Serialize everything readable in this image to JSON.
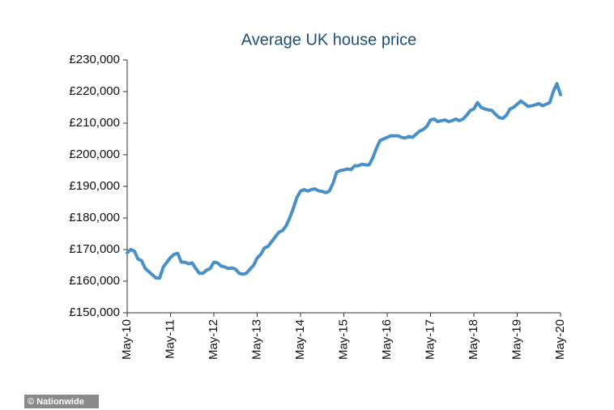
{
  "chart_data": {
    "type": "line",
    "title": "Average UK house price",
    "source": "© Nationwide",
    "categories": [
      "May-10",
      null,
      null,
      null,
      null,
      null,
      null,
      null,
      null,
      null,
      null,
      null,
      "May-11",
      null,
      null,
      null,
      null,
      null,
      null,
      null,
      null,
      null,
      null,
      null,
      "May-12",
      null,
      null,
      null,
      null,
      null,
      null,
      null,
      null,
      null,
      null,
      null,
      "May-13",
      null,
      null,
      null,
      null,
      null,
      null,
      null,
      null,
      null,
      null,
      null,
      "May-14",
      null,
      null,
      null,
      null,
      null,
      null,
      null,
      null,
      null,
      null,
      null,
      "May-15",
      null,
      null,
      null,
      null,
      null,
      null,
      null,
      null,
      null,
      null,
      null,
      "May-16",
      null,
      null,
      null,
      null,
      null,
      null,
      null,
      null,
      null,
      null,
      null,
      "May-17",
      null,
      null,
      null,
      null,
      null,
      null,
      null,
      null,
      null,
      null,
      null,
      "May-18",
      null,
      null,
      null,
      null,
      null,
      null,
      null,
      null,
      null,
      null,
      null,
      "May-19",
      null,
      null,
      null,
      null,
      null,
      null,
      null,
      null,
      null,
      null,
      null,
      "May-20"
    ],
    "series": [
      {
        "name": "Average UK house price",
        "color": "#4a90c8",
        "values": [
          169000,
          170000,
          169500,
          167000,
          166500,
          164000,
          163000,
          162000,
          161000,
          161000,
          164500,
          166000,
          167500,
          168500,
          168800,
          166000,
          166000,
          165500,
          165800,
          164000,
          162500,
          162500,
          163500,
          164000,
          166000,
          165800,
          164800,
          164500,
          164000,
          164200,
          163800,
          162500,
          162200,
          162500,
          163800,
          165000,
          167300,
          168500,
          170500,
          171000,
          172500,
          174000,
          175500,
          176000,
          177500,
          180000,
          183000,
          186500,
          188500,
          189000,
          188500,
          189000,
          189200,
          188600,
          188400,
          188000,
          188500,
          191000,
          194500,
          195000,
          195200,
          195500,
          195300,
          196500,
          196500,
          197000,
          196800,
          196800,
          199000,
          202000,
          204500,
          205000,
          205500,
          206000,
          206000,
          206000,
          205500,
          205300,
          205800,
          205500,
          206500,
          207500,
          208000,
          209000,
          211000,
          211300,
          210500,
          210800,
          211000,
          210500,
          210800,
          211300,
          210800,
          211300,
          212500,
          214000,
          214500,
          216500,
          215000,
          214500,
          214200,
          214000,
          212800,
          211800,
          211500,
          212500,
          214500,
          215000,
          216000,
          217000,
          216200,
          215300,
          215500,
          215800,
          216200,
          215500,
          216000,
          216500,
          220000,
          222500,
          219000
        ]
      }
    ],
    "ylim": [
      150000,
      230000
    ],
    "yticks": [
      {
        "value": 150000,
        "label": "£150,000"
      },
      {
        "value": 160000,
        "label": "£160,000"
      },
      {
        "value": 170000,
        "label": "£170,000"
      },
      {
        "value": 180000,
        "label": "£180,000"
      },
      {
        "value": 190000,
        "label": "£190,000"
      },
      {
        "value": 200000,
        "label": "£200,000"
      },
      {
        "value": 210000,
        "label": "£210,000"
      },
      {
        "value": 220000,
        "label": "£220,000"
      },
      {
        "value": 230000,
        "label": "£230,000"
      }
    ],
    "grid": false
  }
}
